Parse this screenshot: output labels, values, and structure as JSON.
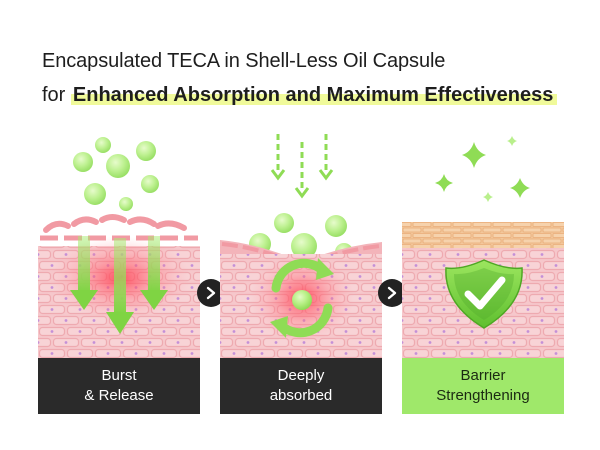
{
  "headline": {
    "line1": "Encapsulated TECA in Shell-Less Oil Capsule",
    "line2_prefix": "for ",
    "line2_highlight": "Enhanced Absorption and Maximum Effectiveness"
  },
  "steps": [
    {
      "line1": "Burst",
      "line2": "& Release"
    },
    {
      "line1": "Deeply",
      "line2": "absorbed"
    },
    {
      "line1": "Barrier",
      "line2": "Strengthening"
    }
  ],
  "icons": {
    "next": "chevron-right-icon",
    "check": "checkmark-shield-icon",
    "sparkle": "sparkle-icon"
  },
  "colors": {
    "capsule_green": "#a6ec6e",
    "arrow_green": "#86d94a",
    "skin_pink": "#f6c7cb",
    "cell_border": "#eeaab0",
    "cell_dot": "#c48fd8",
    "barrier_tan": "#f3c79b",
    "caption_dark": "#2a2a2a",
    "caption_green": "#9fe86a"
  }
}
